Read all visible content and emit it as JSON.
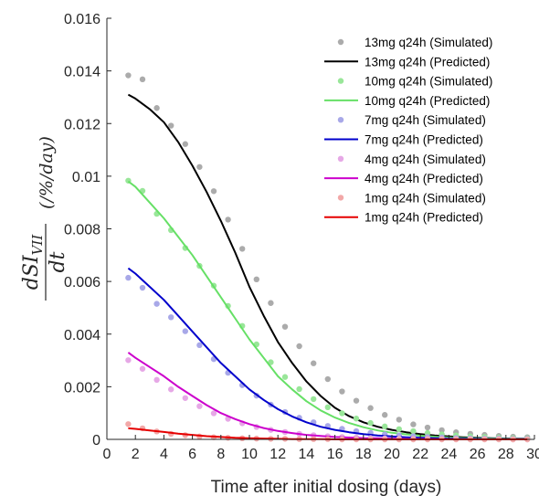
{
  "chart_data": {
    "type": "scatter",
    "xlabel": "Time after initial dosing (days)",
    "ylabel": {
      "numerator_base": "dSI",
      "numerator_sub": "VII",
      "denominator": "dt",
      "unit": "(/%/day)"
    },
    "xlim": [
      0,
      30
    ],
    "ylim": [
      0,
      0.016
    ],
    "x_ticks": [
      "0",
      "2",
      "4",
      "6",
      "8",
      "10",
      "12",
      "14",
      "16",
      "18",
      "20",
      "22",
      "24",
      "26",
      "28",
      "30"
    ],
    "y_ticks": [
      "0",
      "0.002",
      "0.004",
      "0.006",
      "0.008",
      "0.01",
      "0.012",
      "0.014",
      "0.016"
    ],
    "grid": false,
    "legend_position": "top-right",
    "series": [
      {
        "name": "13mg q24h (Simulated)",
        "kind": "points",
        "color": "#ababab",
        "x": [
          1.5,
          2.5,
          3.5,
          4.5,
          5.5,
          6.5,
          7.5,
          8.5,
          9.5,
          10.5,
          11.5,
          12.5,
          13.5,
          14.5,
          15.5,
          16.5,
          17.5,
          18.5,
          19.5,
          20.5,
          21.5,
          22.5,
          23.5,
          24.5,
          25.5,
          26.5,
          27.5,
          28.5,
          29.5
        ],
        "y": [
          0.01383,
          0.01368,
          0.01259,
          0.01192,
          0.01122,
          0.01035,
          0.00943,
          0.00835,
          0.00724,
          0.00608,
          0.00518,
          0.00428,
          0.00354,
          0.00289,
          0.00229,
          0.00182,
          0.00147,
          0.00119,
          0.00093,
          0.00075,
          0.00057,
          0.00045,
          0.00035,
          0.00027,
          0.00021,
          0.00017,
          0.00013,
          0.0001,
          8e-05
        ]
      },
      {
        "name": "13mg q24h (Predicted)",
        "kind": "line",
        "color": "#000000",
        "x": [
          1.5,
          2,
          3,
          4,
          5,
          6,
          7,
          8,
          9,
          10,
          11,
          12,
          13,
          14,
          15,
          16,
          17,
          18,
          19,
          20,
          21,
          22,
          23,
          24,
          25,
          26,
          27,
          28,
          29.5
        ],
        "y": [
          0.0131,
          0.01295,
          0.01255,
          0.01205,
          0.0113,
          0.0104,
          0.0094,
          0.0083,
          0.0071,
          0.0058,
          0.0047,
          0.0037,
          0.0029,
          0.0022,
          0.00165,
          0.0012,
          0.00088,
          0.00065,
          0.00048,
          0.00036,
          0.00027,
          0.0002,
          0.00015,
          0.00011,
          8e-05,
          6e-05,
          4e-05,
          3e-05,
          2e-05
        ]
      },
      {
        "name": "10mg q24h (Simulated)",
        "kind": "points",
        "color": "#99e699",
        "x": [
          1.5,
          2.5,
          3.5,
          4.5,
          5.5,
          6.5,
          7.5,
          8.5,
          9.5,
          10.5,
          11.5,
          12.5,
          13.5,
          14.5,
          15.5,
          16.5,
          17.5,
          18.5,
          19.5,
          20.5,
          21.5,
          22.5,
          23.5,
          24.5,
          25.5,
          26.5,
          27.5,
          28.5,
          29.5
        ],
        "y": [
          0.00983,
          0.00944,
          0.00857,
          0.00795,
          0.00727,
          0.00659,
          0.00584,
          0.00507,
          0.00431,
          0.00361,
          0.00293,
          0.00237,
          0.00191,
          0.00153,
          0.00122,
          0.00099,
          0.00079,
          0.00062,
          0.00049,
          0.00039,
          0.00031,
          0.00024,
          0.00019,
          0.00015,
          0.00011,
          9e-05,
          7e-05,
          5e-05,
          4e-05
        ]
      },
      {
        "name": "10mg q24h (Predicted)",
        "kind": "line",
        "color": "#66e066",
        "x": [
          1.5,
          2,
          3,
          4,
          5,
          6,
          7,
          8,
          9,
          10,
          11,
          12,
          13,
          14,
          15,
          16,
          17,
          18,
          19,
          20,
          21,
          22,
          23,
          24,
          25,
          26,
          27,
          28,
          29.5
        ],
        "y": [
          0.0098,
          0.0096,
          0.009,
          0.0084,
          0.0077,
          0.007,
          0.0062,
          0.0054,
          0.0046,
          0.0038,
          0.0031,
          0.0024,
          0.0019,
          0.00145,
          0.0011,
          0.00083,
          0.00062,
          0.00046,
          0.00034,
          0.00025,
          0.00019,
          0.00014,
          0.0001,
          7e-05,
          5e-05,
          4e-05,
          3e-05,
          2e-05,
          1e-05
        ]
      },
      {
        "name": "7mg q24h (Simulated)",
        "kind": "points",
        "color": "#a8a8e8",
        "x": [
          1.5,
          2.5,
          3.5,
          4.5,
          5.5,
          6.5,
          7.5,
          8.5,
          9.5,
          10.5,
          11.5,
          12.5,
          13.5,
          14.5,
          15.5,
          16.5,
          17.5,
          18.5,
          19.5,
          20.5,
          21.5,
          22.5,
          23.5,
          24.5,
          25.5,
          26.5,
          27.5,
          28.5,
          29.5
        ],
        "y": [
          0.00614,
          0.00576,
          0.00515,
          0.00464,
          0.00411,
          0.00358,
          0.00305,
          0.00253,
          0.00206,
          0.00166,
          0.00132,
          0.00104,
          0.00082,
          0.00065,
          0.00051,
          0.0004,
          0.00031,
          0.00025,
          0.00019,
          0.00015,
          0.00012,
          9e-05,
          7e-05,
          5e-05,
          4e-05,
          3e-05,
          3e-05,
          2e-05,
          2e-05
        ]
      },
      {
        "name": "7mg q24h (Predicted)",
        "kind": "line",
        "color": "#0000cc",
        "x": [
          1.5,
          2,
          3,
          4,
          5,
          6,
          7,
          8,
          9,
          10,
          11,
          12,
          13,
          14,
          15,
          16,
          17,
          18,
          19,
          20,
          21,
          22,
          23,
          24,
          25,
          26,
          27,
          28,
          29.5
        ],
        "y": [
          0.0065,
          0.0063,
          0.0058,
          0.0053,
          0.0047,
          0.0041,
          0.0035,
          0.0029,
          0.0024,
          0.0019,
          0.0015,
          0.00115,
          0.00087,
          0.00065,
          0.00048,
          0.00036,
          0.00027,
          0.0002,
          0.00015,
          0.00011,
          8e-05,
          6e-05,
          4e-05,
          3e-05,
          2e-05,
          2e-05,
          1e-05,
          1e-05,
          1e-05
        ]
      },
      {
        "name": "4mg q24h (Simulated)",
        "kind": "points",
        "color": "#e6a8e6",
        "x": [
          1.5,
          2.5,
          3.5,
          4.5,
          5.5,
          6.5,
          7.5,
          8.5,
          9.5,
          10.5,
          11.5,
          12.5,
          13.5,
          14.5,
          15.5,
          16.5,
          17.5,
          18.5,
          19.5,
          20.5,
          21.5,
          22.5,
          23.5,
          24.5,
          25.5,
          26.5,
          27.5,
          28.5,
          29.5
        ],
        "y": [
          0.00301,
          0.00268,
          0.00226,
          0.0019,
          0.00157,
          0.00126,
          0.00099,
          0.00078,
          0.00061,
          0.00047,
          0.00036,
          0.00028,
          0.00021,
          0.00016,
          0.00012,
          9e-05,
          7e-05,
          5e-05,
          4e-05,
          3e-05,
          2e-05,
          2e-05,
          1e-05,
          1e-05,
          1e-05,
          1e-05,
          1e-05,
          0,
          0
        ]
      },
      {
        "name": "4mg q24h (Predicted)",
        "kind": "line",
        "color": "#cc00cc",
        "x": [
          1.5,
          2,
          3,
          4,
          5,
          6,
          7,
          8,
          9,
          10,
          11,
          12,
          13,
          14,
          15,
          16,
          17,
          18,
          19,
          20,
          21,
          22,
          23,
          24,
          25,
          26,
          27,
          28,
          29.5
        ],
        "y": [
          0.0033,
          0.0031,
          0.00275,
          0.0024,
          0.002,
          0.00165,
          0.0013,
          0.001,
          0.00077,
          0.00058,
          0.00043,
          0.00032,
          0.00024,
          0.00017,
          0.00013,
          9e-05,
          7e-05,
          5e-05,
          4e-05,
          3e-05,
          2e-05,
          1e-05,
          1e-05,
          1e-05,
          0,
          0,
          0,
          0,
          0
        ]
      },
      {
        "name": "1mg q24h (Simulated)",
        "kind": "points",
        "color": "#f2a8a8",
        "x": [
          1.5,
          2.5,
          3.5,
          4.5,
          5.5,
          6.5,
          7.5,
          8.5,
          9.5,
          10.5,
          11.5,
          12.5,
          13.5,
          14.5,
          15.5,
          16.5,
          17.5,
          18.5,
          19.5,
          20.5,
          21.5,
          22.5,
          23.5,
          24.5,
          25.5,
          26.5,
          27.5,
          28.5,
          29.5
        ],
        "y": [
          0.00058,
          0.00042,
          0.0003,
          0.00021,
          0.00016,
          0.00011,
          8e-05,
          6e-05,
          4e-05,
          3e-05,
          2e-05,
          2e-05,
          1e-05,
          1e-05,
          1e-05,
          0,
          0,
          0,
          0,
          0,
          0,
          0,
          0,
          0,
          0,
          0,
          0,
          0,
          0
        ]
      },
      {
        "name": "1mg q24h (Predicted)",
        "kind": "line",
        "color": "#e60000",
        "x": [
          1.5,
          2,
          3,
          4,
          5,
          6,
          7,
          8,
          9,
          10,
          11,
          12,
          13,
          14,
          15,
          16,
          17,
          18,
          19,
          20,
          21,
          22,
          23,
          24,
          25,
          26,
          27,
          28,
          29.5
        ],
        "y": [
          0.00042,
          0.0004,
          0.00034,
          0.00028,
          0.00022,
          0.00017,
          0.00012,
          9e-05,
          6e-05,
          4e-05,
          3e-05,
          2e-05,
          1e-05,
          1e-05,
          1e-05,
          0,
          0,
          0,
          0,
          0,
          0,
          0,
          0,
          0,
          0,
          0,
          0,
          0,
          0
        ]
      }
    ]
  }
}
